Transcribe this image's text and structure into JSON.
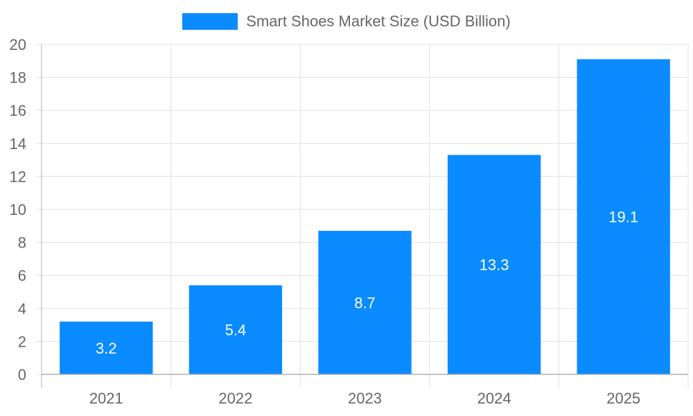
{
  "legend": {
    "label": "Smart Shoes Market Size (USD Billion)",
    "color": "#0a8bff"
  },
  "chart_data": {
    "type": "bar",
    "title": "",
    "categories": [
      "2021",
      "2022",
      "2023",
      "2024",
      "2025"
    ],
    "series": [
      {
        "name": "Smart Shoes Market Size (USD Billion)",
        "values": [
          3.2,
          5.4,
          8.7,
          13.3,
          19.1
        ],
        "color": "#0a8bff"
      }
    ],
    "values": [
      3.2,
      5.4,
      8.7,
      13.3,
      19.1
    ],
    "xlabel": "",
    "ylabel": "",
    "ylim": [
      0,
      20
    ],
    "yticks": [
      0,
      2,
      4,
      6,
      8,
      10,
      12,
      14,
      16,
      18,
      20
    ],
    "grid": true,
    "legend_position": "top",
    "data_labels": [
      "3.2",
      "5.4",
      "8.7",
      "13.3",
      "19.1"
    ]
  }
}
